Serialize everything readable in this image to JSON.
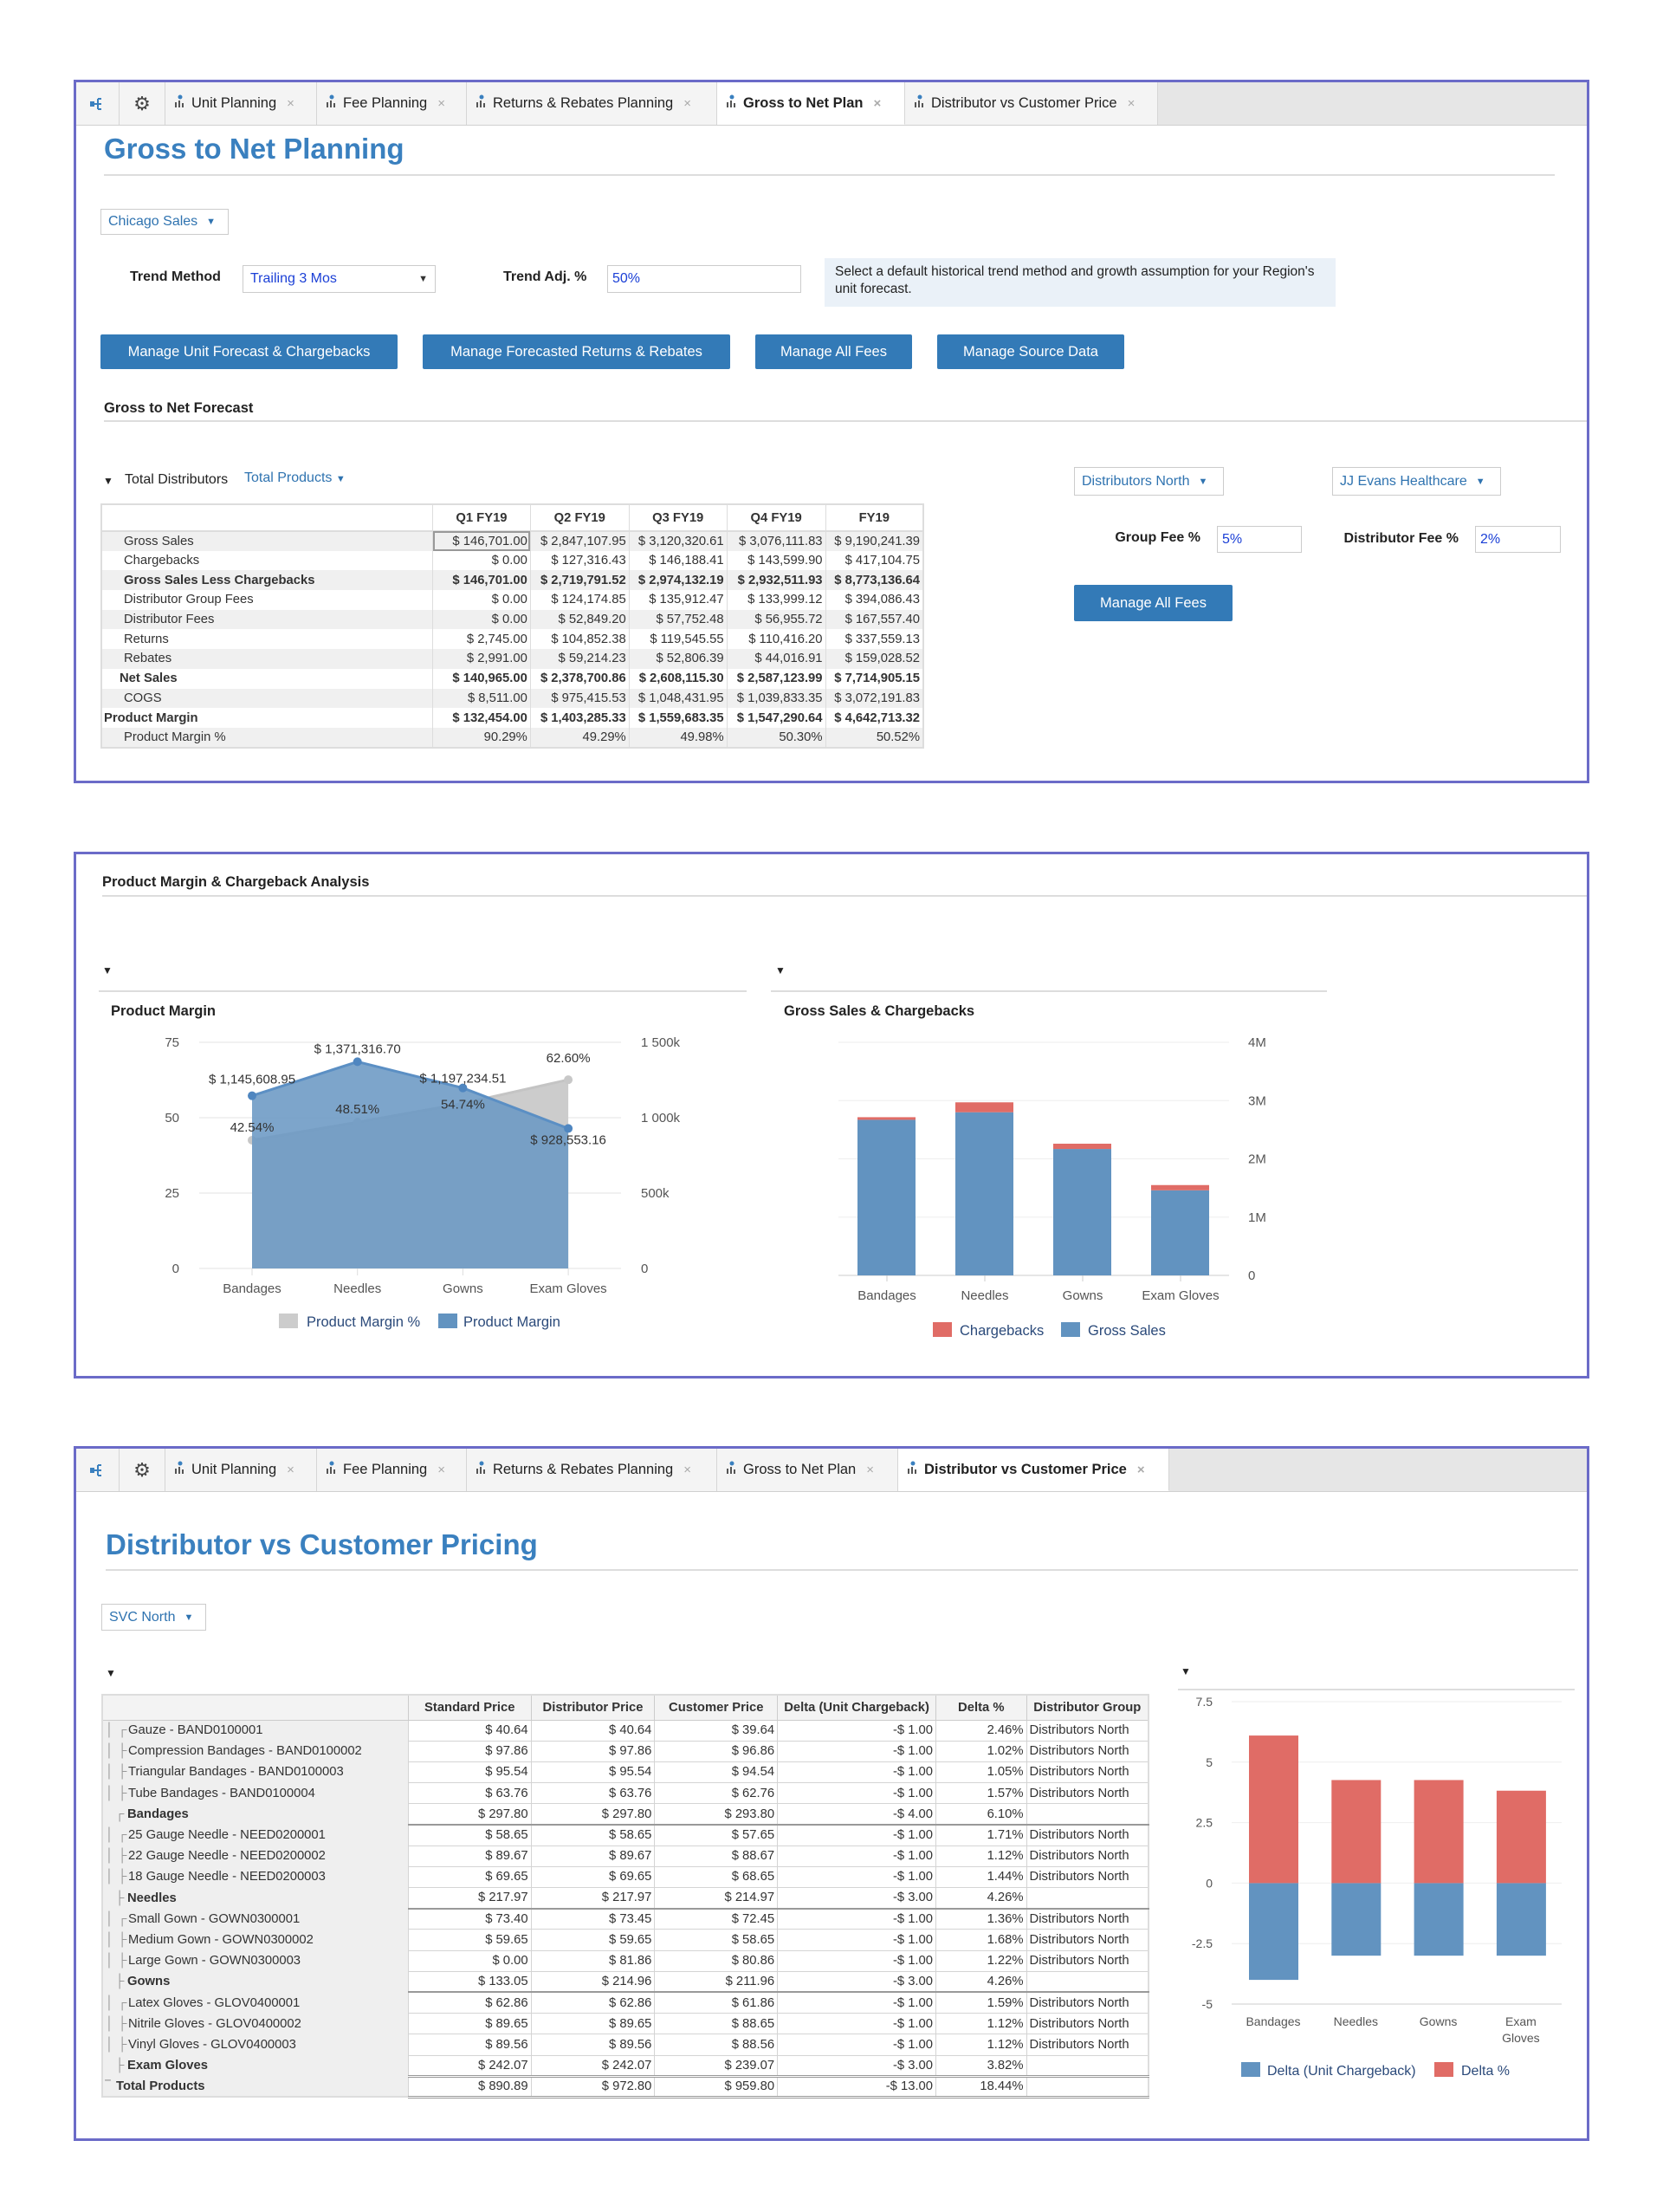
{
  "tabs": [
    "Unit Planning",
    "Fee Planning",
    "Returns & Rebates Planning",
    "Gross to Net Plan",
    "Distributor vs Customer Price"
  ],
  "colors": {
    "accent": "#337ab7",
    "title": "#3a80bf",
    "panel_border": "#6b6bc8",
    "series_blue": "#6293c0",
    "series_red": "#e06c66",
    "series_grey": "#cccccc"
  },
  "gtn": {
    "title": "Gross to Net Planning",
    "region": "Chicago Sales",
    "trend_method_label": "Trend Method",
    "trend_method_value": "Trailing 3 Mos",
    "trend_adj_label": "Trend Adj. %",
    "trend_adj_value": "50%",
    "info_text": "Select a default historical trend method and growth assumption for your Region's unit forecast.",
    "buttons": [
      "Manage Unit Forecast & Chargebacks",
      "Manage Forecasted Returns & Rebates",
      "Manage All Fees",
      "Manage Source Data"
    ],
    "forecast_title": "Gross to Net Forecast",
    "tree_label": "Total Distributors",
    "product_filter": "Total Products",
    "table": {
      "columns": [
        "Q1 FY19",
        "Q2 FY19",
        "Q3 FY19",
        "Q4 FY19",
        "FY19"
      ],
      "rows": [
        {
          "label": "Gross Sales",
          "level": 2,
          "bold": false,
          "values": [
            "$ 146,701.00",
            "$ 2,847,107.95",
            "$ 3,120,320.61",
            "$ 3,076,111.83",
            "$ 9,190,241.39"
          ]
        },
        {
          "label": "Chargebacks",
          "level": 2,
          "bold": false,
          "values": [
            "$ 0.00",
            "$ 127,316.43",
            "$ 146,188.41",
            "$ 143,599.90",
            "$ 417,104.75"
          ]
        },
        {
          "label": "Gross Sales Less Chargebacks",
          "level": 2,
          "bold": true,
          "values": [
            "$ 146,701.00",
            "$ 2,719,791.52",
            "$ 2,974,132.19",
            "$ 2,932,511.93",
            "$ 8,773,136.64"
          ]
        },
        {
          "label": "Distributor Group Fees",
          "level": 2,
          "bold": false,
          "values": [
            "$ 0.00",
            "$ 124,174.85",
            "$ 135,912.47",
            "$ 133,999.12",
            "$ 394,086.43"
          ]
        },
        {
          "label": "Distributor Fees",
          "level": 2,
          "bold": false,
          "values": [
            "$ 0.00",
            "$ 52,849.20",
            "$ 57,752.48",
            "$ 56,955.72",
            "$ 167,557.40"
          ]
        },
        {
          "label": "Returns",
          "level": 2,
          "bold": false,
          "values": [
            "$ 2,745.00",
            "$ 104,852.38",
            "$ 119,545.55",
            "$ 110,416.20",
            "$ 337,559.13"
          ]
        },
        {
          "label": "Rebates",
          "level": 2,
          "bold": false,
          "values": [
            "$ 2,991.00",
            "$ 59,214.23",
            "$ 52,806.39",
            "$ 44,016.91",
            "$ 159,028.52"
          ]
        },
        {
          "label": "Net Sales",
          "level": 1,
          "bold": true,
          "values": [
            "$ 140,965.00",
            "$ 2,378,700.86",
            "$ 2,608,115.30",
            "$ 2,587,123.99",
            "$ 7,714,905.15"
          ]
        },
        {
          "label": "COGS",
          "level": 2,
          "bold": false,
          "values": [
            "$ 8,511.00",
            "$ 975,415.53",
            "$ 1,048,431.95",
            "$ 1,039,833.35",
            "$ 3,072,191.83"
          ]
        },
        {
          "label": "Product Margin",
          "level": 0,
          "bold": true,
          "values": [
            "$ 132,454.00",
            "$ 1,403,285.33",
            "$ 1,559,683.35",
            "$ 1,547,290.64",
            "$ 4,642,713.32"
          ]
        },
        {
          "label": "Product Margin %",
          "level": 2,
          "bold": false,
          "values": [
            "90.29%",
            "49.29%",
            "49.98%",
            "50.30%",
            "50.52%"
          ]
        }
      ]
    },
    "fees": {
      "distributor_group": "Distributors North",
      "distributor": "JJ Evans Healthcare",
      "group_fee_label": "Group Fee %",
      "group_fee_value": "5%",
      "distributor_fee_label": "Distributor Fee %",
      "distributor_fee_value": "2%",
      "button": "Manage All Fees"
    }
  },
  "analysis": {
    "title": "Product Margin & Chargeback Analysis"
  },
  "dvc": {
    "title": "Distributor vs Customer Pricing",
    "region": "SVC North",
    "columns": [
      "Standard Price",
      "Distributor Price",
      "Customer Price",
      "Delta (Unit Chargeback)",
      "Delta %",
      "Distributor Group"
    ],
    "rows": [
      {
        "label": "Gauze - BAND0100001",
        "level": 2,
        "first": true,
        "values": [
          "$ 40.64",
          "$ 40.64",
          "$ 39.64",
          "-$ 1.00",
          "2.46%",
          "Distributors North"
        ]
      },
      {
        "label": "Compression Bandages - BAND0100002",
        "level": 2,
        "values": [
          "$ 97.86",
          "$ 97.86",
          "$ 96.86",
          "-$ 1.00",
          "1.02%",
          "Distributors North"
        ]
      },
      {
        "label": "Triangular Bandages - BAND0100003",
        "level": 2,
        "values": [
          "$ 95.54",
          "$ 95.54",
          "$ 94.54",
          "-$ 1.00",
          "1.05%",
          "Distributors North"
        ]
      },
      {
        "label": "Tube Bandages - BAND0100004",
        "level": 2,
        "values": [
          "$ 63.76",
          "$ 63.76",
          "$ 62.76",
          "-$ 1.00",
          "1.57%",
          "Distributors North"
        ]
      },
      {
        "label": "Bandages",
        "level": 1,
        "first": true,
        "values": [
          "$ 297.80",
          "$ 297.80",
          "$ 293.80",
          "-$ 4.00",
          "6.10%",
          ""
        ]
      },
      {
        "label": "25 Gauge Needle - NEED0200001",
        "level": 2,
        "first": true,
        "values": [
          "$ 58.65",
          "$ 58.65",
          "$ 57.65",
          "-$ 1.00",
          "1.71%",
          "Distributors North"
        ]
      },
      {
        "label": "22 Gauge Needle - NEED0200002",
        "level": 2,
        "values": [
          "$ 89.67",
          "$ 89.67",
          "$ 88.67",
          "-$ 1.00",
          "1.12%",
          "Distributors North"
        ]
      },
      {
        "label": "18 Gauge Needle - NEED0200003",
        "level": 2,
        "values": [
          "$ 69.65",
          "$ 69.65",
          "$ 68.65",
          "-$ 1.00",
          "1.44%",
          "Distributors North"
        ]
      },
      {
        "label": "Needles",
        "level": 1,
        "values": [
          "$ 217.97",
          "$ 217.97",
          "$ 214.97",
          "-$ 3.00",
          "4.26%",
          ""
        ]
      },
      {
        "label": "Small Gown - GOWN0300001",
        "level": 2,
        "first": true,
        "values": [
          "$ 73.40",
          "$ 73.45",
          "$ 72.45",
          "-$ 1.00",
          "1.36%",
          "Distributors North"
        ]
      },
      {
        "label": "Medium Gown - GOWN0300002",
        "level": 2,
        "values": [
          "$ 59.65",
          "$ 59.65",
          "$ 58.65",
          "-$ 1.00",
          "1.68%",
          "Distributors North"
        ]
      },
      {
        "label": "Large Gown - GOWN0300003",
        "level": 2,
        "values": [
          "$ 0.00",
          "$ 81.86",
          "$ 80.86",
          "-$ 1.00",
          "1.22%",
          "Distributors North"
        ]
      },
      {
        "label": "Gowns",
        "level": 1,
        "values": [
          "$ 133.05",
          "$ 214.96",
          "$ 211.96",
          "-$ 3.00",
          "4.26%",
          ""
        ]
      },
      {
        "label": "Latex Gloves - GLOV0400001",
        "level": 2,
        "first": true,
        "values": [
          "$ 62.86",
          "$ 62.86",
          "$ 61.86",
          "-$ 1.00",
          "1.59%",
          "Distributors North"
        ]
      },
      {
        "label": "Nitrile Gloves - GLOV0400002",
        "level": 2,
        "values": [
          "$ 89.65",
          "$ 89.65",
          "$ 88.65",
          "-$ 1.00",
          "1.12%",
          "Distributors North"
        ]
      },
      {
        "label": "Vinyl Gloves - GLOV0400003",
        "level": 2,
        "values": [
          "$ 89.56",
          "$ 89.56",
          "$ 88.56",
          "-$ 1.00",
          "1.12%",
          "Distributors North"
        ]
      },
      {
        "label": "Exam Gloves",
        "level": 1,
        "values": [
          "$ 242.07",
          "$ 242.07",
          "$ 239.07",
          "-$ 3.00",
          "3.82%",
          ""
        ]
      },
      {
        "label": "Total Products",
        "level": 0,
        "values": [
          "$ 890.89",
          "$ 972.80",
          "$ 959.80",
          "-$ 13.00",
          "18.44%",
          ""
        ]
      }
    ]
  },
  "chart_data": [
    {
      "type": "area",
      "title": "Product Margin",
      "categories": [
        "Bandages",
        "Needles",
        "Gowns",
        "Exam Gloves"
      ],
      "series": [
        {
          "name": "Product Margin %",
          "axis": "left",
          "color": "#cccccc",
          "values": [
            42.54,
            48.51,
            54.74,
            62.6
          ],
          "labels": [
            "42.54%",
            "48.51%",
            "54.74%",
            "62.60%"
          ]
        },
        {
          "name": "Product Margin",
          "axis": "right",
          "color": "#6293c0",
          "values": [
            1145608.95,
            1371316.7,
            1197234.51,
            928553.16
          ],
          "labels": [
            "$ 1,145,608.95",
            "$ 1,371,316.70",
            "$ 1,197,234.51",
            "$ 928,553.16"
          ]
        }
      ],
      "y_left": {
        "range": [
          0,
          75
        ],
        "ticks": [
          "0",
          "25",
          "50",
          "75"
        ]
      },
      "y_right": {
        "range": [
          0,
          1500000
        ],
        "ticks": [
          "0",
          "500k",
          "1 000k",
          "1 500k"
        ]
      },
      "grid": true,
      "legend": "bottom"
    },
    {
      "type": "bar",
      "stacked": true,
      "title": "Gross Sales & Chargebacks",
      "categories": [
        "Bandages",
        "Needles",
        "Gowns",
        "Exam Gloves"
      ],
      "series": [
        {
          "name": "Gross Sales",
          "color": "#6293c0",
          "values": [
            2670000,
            2800000,
            2170000,
            1460000
          ]
        },
        {
          "name": "Chargebacks",
          "color": "#e06c66",
          "values": [
            45000,
            170000,
            90000,
            90000
          ]
        }
      ],
      "legend_order": [
        "Chargebacks",
        "Gross Sales"
      ],
      "ylim": [
        0,
        4000000
      ],
      "y_ticks": [
        "0",
        "1M",
        "2M",
        "3M",
        "4M"
      ],
      "y_axis_side": "right",
      "grid": true,
      "legend": "bottom"
    },
    {
      "type": "bar",
      "stacked": true,
      "title": "",
      "categories": [
        "Bandages",
        "Needles",
        "Gowns",
        "Exam Gloves"
      ],
      "series": [
        {
          "name": "Delta (Unit Chargeback)",
          "color": "#6293c0",
          "values": [
            -4,
            -3,
            -3,
            -3
          ]
        },
        {
          "name": "Delta %",
          "color": "#e06c66",
          "values": [
            6.1,
            4.26,
            4.26,
            3.82
          ]
        }
      ],
      "ylim": [
        -5,
        7.5
      ],
      "y_ticks": [
        "-5",
        "-2.5",
        "0",
        "2.5",
        "5",
        "7.5"
      ],
      "grid": true,
      "legend": "bottom"
    }
  ]
}
